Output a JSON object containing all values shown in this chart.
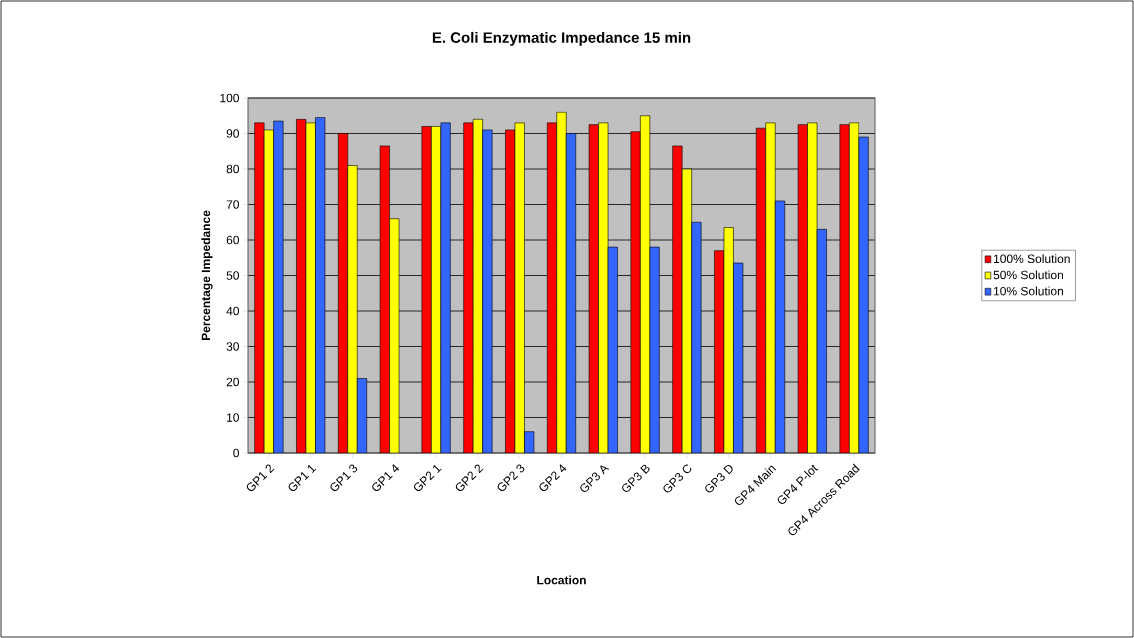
{
  "chart_data": {
    "type": "bar",
    "title": "E. Coli Enzymatic Impedance 15 min",
    "xlabel": "Location",
    "ylabel": "Percentage Impedance",
    "categories": [
      "GP1 2",
      "GP1 1",
      "GP1 3",
      "GP1 4",
      "GP2 1",
      "GP2 2",
      "GP2 3",
      "GP2 4",
      "GP3 A",
      "GP3 B",
      "GP3 C",
      "GP3 D",
      "GP4 Main",
      "GP4 P-lot",
      "GP4 Across Road"
    ],
    "series": [
      {
        "name": "100% Solution",
        "color": "#ff0000",
        "values": [
          93,
          94,
          90,
          86.5,
          92,
          93,
          91,
          93,
          92.5,
          90.5,
          86.5,
          57,
          91.5,
          92.5,
          92.5
        ]
      },
      {
        "name": "50% Solution",
        "color": "#ffff00",
        "values": [
          91,
          93,
          81,
          66,
          92,
          94,
          93,
          96,
          93,
          95,
          80,
          63.5,
          93,
          93,
          93
        ]
      },
      {
        "name": "10% Solution",
        "color": "#3366ff",
        "values": [
          93.5,
          94.5,
          21,
          null,
          93,
          91,
          6,
          90,
          58,
          58,
          65,
          53.5,
          71,
          63,
          89
        ]
      }
    ],
    "ylim": [
      0,
      100
    ],
    "yticks": [
      0,
      10,
      20,
      30,
      40,
      50,
      60,
      70,
      80,
      90,
      100
    ],
    "grid": "y",
    "legend": "right"
  }
}
